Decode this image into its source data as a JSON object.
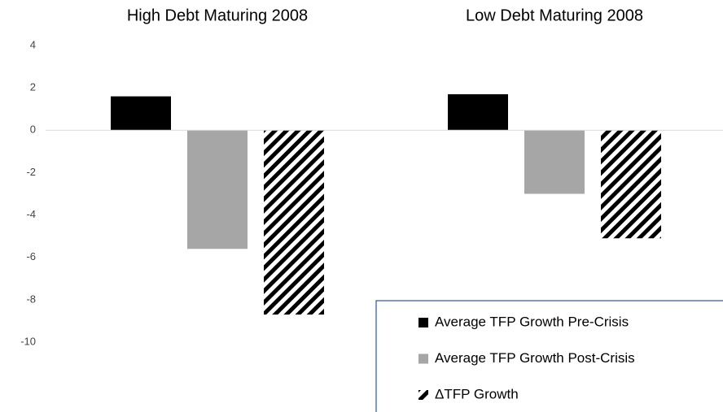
{
  "chart_data": {
    "type": "bar",
    "categories": [
      "High Debt Maturing 2008",
      "Low Debt Maturing 2008"
    ],
    "series": [
      {
        "name": "Average TFP Growth Pre-Crisis",
        "color": "#000000",
        "values": [
          1.6,
          1.7
        ]
      },
      {
        "name": "Average TFP Growth Post-Crisis",
        "color": "#a6a6a6",
        "values": [
          -5.6,
          -3.0
        ]
      },
      {
        "name": "ΔTFP Growth",
        "color": "#000000",
        "pattern": "hatch",
        "values": [
          -8.7,
          -5.1
        ]
      }
    ],
    "ylim": [
      -10,
      4
    ],
    "yticks": [
      4,
      2,
      0,
      -2,
      -4,
      -6,
      -8,
      -10
    ],
    "grid": false,
    "legend": "lower right"
  }
}
